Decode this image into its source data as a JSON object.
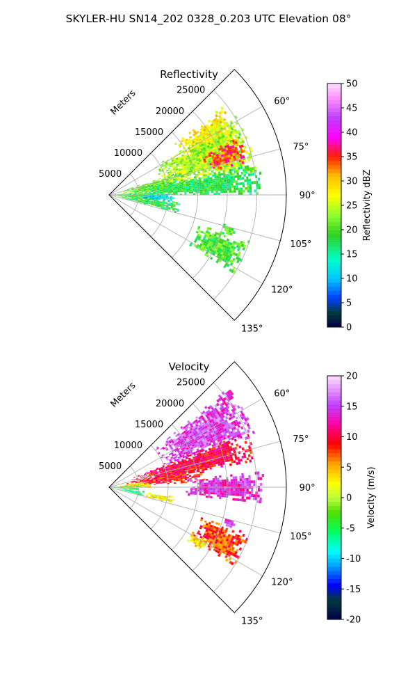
{
  "figure": {
    "title": "SKYLER-HU  SN14_202  0328_0.203 UTC Elevation 08°"
  },
  "chart_data": [
    {
      "type": "heatmap",
      "title": "Reflectivity",
      "radial_label": "Meters",
      "radial_ticks": [
        5000,
        10000,
        15000,
        20000,
        25000
      ],
      "radial_max": 30000,
      "azimuth_ticks": [
        "60°",
        "75°",
        "90°",
        "105°",
        "120°",
        "135°"
      ],
      "azimuth_range_deg": [
        45,
        135
      ],
      "colorbar": {
        "label": "Reflectivity dBZ",
        "range": [
          0,
          50
        ],
        "ticks": [
          0,
          5,
          10,
          15,
          20,
          25,
          30,
          35,
          40,
          45,
          50
        ]
      },
      "echoes": [
        {
          "az": [
            52,
            68
          ],
          "r": [
            14000,
            24000
          ],
          "value": 28
        },
        {
          "az": [
            58,
            80
          ],
          "r": [
            9000,
            25000
          ],
          "value": 24
        },
        {
          "az": [
            66,
            76
          ],
          "r": [
            17000,
            24000
          ],
          "value": 34
        },
        {
          "az": [
            72,
            86
          ],
          "r": [
            2000,
            13000
          ],
          "value": 22
        },
        {
          "az": [
            78,
            90
          ],
          "r": [
            4000,
            26000
          ],
          "value": 18
        },
        {
          "az": [
            86,
            98
          ],
          "r": [
            0,
            9000
          ],
          "value": 20
        },
        {
          "az": [
            88,
            96
          ],
          "r": [
            5000,
            11000
          ],
          "value": 12
        },
        {
          "az": [
            96,
            104
          ],
          "r": [
            1500,
            12000
          ],
          "value": 18
        },
        {
          "az": [
            104,
            108
          ],
          "r": [
            20000,
            22000
          ],
          "value": 20
        },
        {
          "az": [
            108,
            122
          ],
          "r": [
            16000,
            25000
          ],
          "value": 20
        }
      ]
    },
    {
      "type": "heatmap",
      "title": "Velocity",
      "radial_label": "Meters",
      "radial_ticks": [
        5000,
        10000,
        15000,
        20000,
        25000
      ],
      "radial_max": 30000,
      "azimuth_ticks": [
        "60°",
        "75°",
        "90°",
        "105°",
        "120°",
        "135°"
      ],
      "azimuth_range_deg": [
        45,
        135
      ],
      "colorbar": {
        "label": "Velocity (m/s)",
        "range": [
          -20,
          20
        ],
        "ticks": [
          -20,
          -15,
          -10,
          -5,
          0,
          5,
          10,
          15,
          20
        ]
      },
      "echoes": [
        {
          "az": [
            50,
            70
          ],
          "r": [
            10000,
            26000
          ],
          "value": 15
        },
        {
          "az": [
            68,
            80
          ],
          "r": [
            4000,
            25000
          ],
          "value": 10
        },
        {
          "az": [
            76,
            86
          ],
          "r": [
            3000,
            16000
          ],
          "value": 9
        },
        {
          "az": [
            80,
            90
          ],
          "r": [
            1000,
            7000
          ],
          "value": 3
        },
        {
          "az": [
            86,
            96
          ],
          "r": [
            0,
            5000
          ],
          "value": -3
        },
        {
          "az": [
            84,
            96
          ],
          "r": [
            13000,
            26000
          ],
          "value": 14
        },
        {
          "az": [
            96,
            104
          ],
          "r": [
            1500,
            6000
          ],
          "value": -6
        },
        {
          "az": [
            98,
            104
          ],
          "r": [
            6000,
            11000
          ],
          "value": 2
        },
        {
          "az": [
            104,
            108
          ],
          "r": [
            20000,
            22000
          ],
          "value": 14
        },
        {
          "az": [
            108,
            122
          ],
          "r": [
            16000,
            25000
          ],
          "value": 8
        },
        {
          "az": [
            118,
            124
          ],
          "r": [
            16000,
            19000
          ],
          "value": 3
        }
      ]
    }
  ]
}
